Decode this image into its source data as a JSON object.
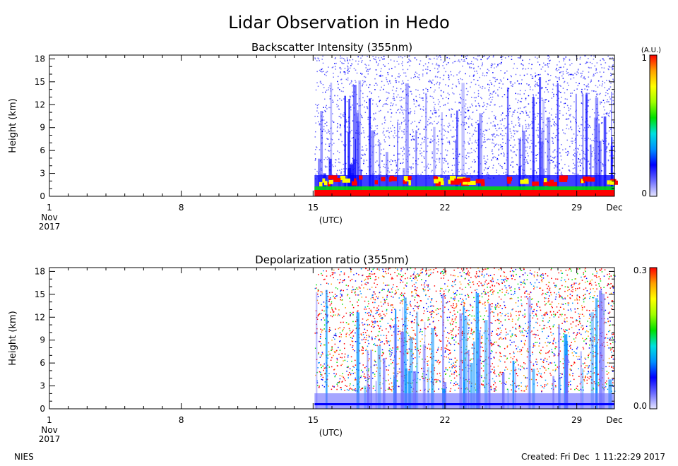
{
  "title": "Lidar Observation in Hedo",
  "footer": {
    "left": "NIES",
    "right": "Created: Fri Dec  1 11:22:29 2017"
  },
  "chart_data": [
    {
      "type": "heatmap",
      "title": "Backscatter Intensity (355nm)",
      "ylabel": "Height (km)",
      "x_ticks": [
        "1",
        "8",
        "15",
        "22",
        "29",
        "Dec"
      ],
      "x_sublabels": {
        "first_month": "Nov",
        "first_year": "2017",
        "center": "(UTC)"
      },
      "x_range": [
        "2017-11-01",
        "2017-12-01"
      ],
      "data_start": "2017-11-15",
      "y_ticks": [
        0,
        3,
        6,
        9,
        12,
        15,
        18
      ],
      "ylim": [
        0,
        18.5
      ],
      "colorbar": {
        "unit": "(A.U.)",
        "min_label": "0",
        "max_label": "1"
      },
      "colormap": [
        "#e6e6ff",
        "#6a6aff",
        "#0000ff",
        "#0090ff",
        "#00e0e0",
        "#00e000",
        "#a0ff00",
        "#ffff00",
        "#ffa000",
        "#ff0000"
      ]
    },
    {
      "type": "heatmap",
      "title": "Depolarization ratio (355nm)",
      "ylabel": "Height (km)",
      "x_ticks": [
        "1",
        "8",
        "15",
        "22",
        "29",
        "Dec"
      ],
      "x_sublabels": {
        "first_month": "Nov",
        "first_year": "2017",
        "center": "(UTC)"
      },
      "x_range": [
        "2017-11-01",
        "2017-12-01"
      ],
      "data_start": "2017-11-15",
      "y_ticks": [
        0,
        3,
        6,
        9,
        12,
        15,
        18
      ],
      "ylim": [
        0,
        18.5
      ],
      "colorbar": {
        "unit": "",
        "min_label": "0.0",
        "max_label": "0.3"
      },
      "colormap": [
        "#e6e6ff",
        "#6a6aff",
        "#0000ff",
        "#0090ff",
        "#00e0e0",
        "#00e000",
        "#a0ff00",
        "#ffff00",
        "#ffa000",
        "#ff0000"
      ]
    }
  ]
}
